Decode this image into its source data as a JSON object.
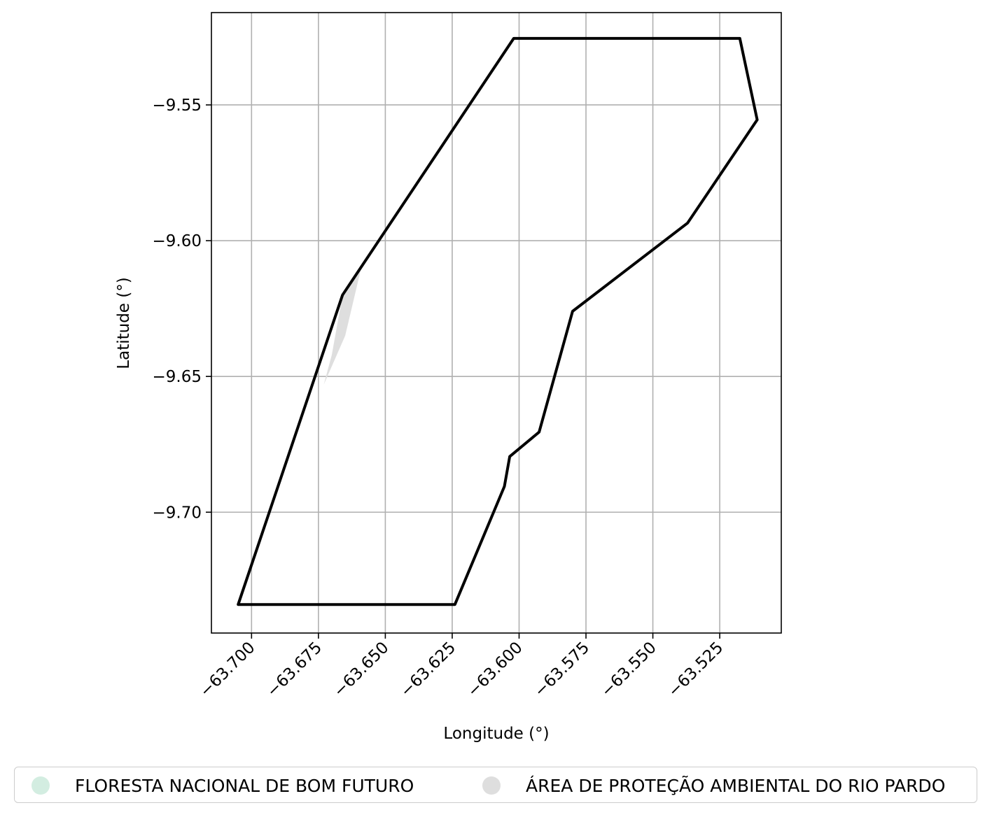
{
  "chart_data": {
    "type": "map",
    "xlabel": "Longitude (°)",
    "ylabel": "Latitude (°)",
    "xlim": [
      -63.715,
      -63.502
    ],
    "ylim": [
      -9.7445,
      -9.516
    ],
    "xticks": [
      -63.7,
      -63.675,
      -63.65,
      -63.625,
      -63.6,
      -63.575,
      -63.55,
      -63.525
    ],
    "xtick_labels": [
      "−63.700",
      "−63.675",
      "−63.650",
      "−63.625",
      "−63.600",
      "−63.575",
      "−63.550",
      "−63.525"
    ],
    "yticks": [
      -9.55,
      -9.6,
      -9.65,
      -9.7
    ],
    "ytick_labels": [
      "−9.55",
      "−9.60",
      "−9.65",
      "−9.70"
    ],
    "grid": true,
    "legend_position": "bottom",
    "series": [
      {
        "name": "FLORESTA NACIONAL DE BOM FUTURO",
        "color": "#d3ede1",
        "fill": "none",
        "edge": "#000000",
        "points": [
          [
            -63.705,
            -9.734
          ],
          [
            -63.624,
            -9.734
          ],
          [
            -63.6055,
            -9.6905
          ],
          [
            -63.6035,
            -9.6795
          ],
          [
            -63.5925,
            -9.6705
          ],
          [
            -63.58,
            -9.626
          ],
          [
            -63.537,
            -9.5935
          ],
          [
            -63.511,
            -9.5555
          ],
          [
            -63.5175,
            -9.5255
          ],
          [
            -63.602,
            -9.5255
          ],
          [
            -63.666,
            -9.62
          ],
          [
            -63.705,
            -9.734
          ]
        ]
      },
      {
        "name": "ÁREA DE PROTEÇÃO AMBIENTAL DO RIO PARDO",
        "color": "#dedede",
        "fill": "#dedede",
        "edge": "none",
        "points": [
          [
            -63.666,
            -9.62
          ],
          [
            -63.659,
            -9.61
          ],
          [
            -63.665,
            -9.635
          ],
          [
            -63.673,
            -9.653
          ],
          [
            -63.67,
            -9.642
          ],
          [
            -63.666,
            -9.62
          ]
        ]
      }
    ]
  }
}
